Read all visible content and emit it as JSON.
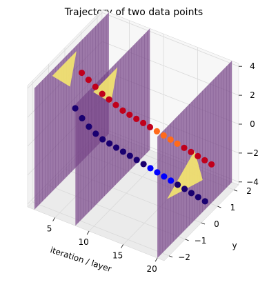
{
  "chart_data": {
    "type": "scatter",
    "projection": "3d",
    "title": "Trajectory of two data points",
    "xlabel": "iteration / layer",
    "ylabel": "y",
    "zlabel": "",
    "xlim": [
      1,
      21
    ],
    "ylim": [
      -2.3,
      2.3
    ],
    "zlim": [
      -4.2,
      4.2
    ],
    "x_ticks": [
      5,
      10,
      15,
      20
    ],
    "y_ticks": [
      -2,
      -1,
      0,
      1,
      2
    ],
    "z_ticks": [
      -4,
      -2,
      0,
      2,
      4
    ],
    "grid": true,
    "planes": [
      {
        "x": 2,
        "color": "#7b4a8c",
        "highlight_color": "#f5e76e",
        "highlight_side": "upper"
      },
      {
        "x": 8,
        "color": "#7b4a8c",
        "highlight_color": "#f5e76e",
        "highlight_side": "upper"
      },
      {
        "x": 20,
        "color": "#7b4a8c",
        "highlight_color": "#f5e76e",
        "highlight_side": "middle"
      }
    ],
    "series": [
      {
        "colors": {
          "start": "#c0001c",
          "end": "#c0001c",
          "mid_highlight": "#ff6a1a"
        },
        "x": [
          3,
          4,
          5,
          6,
          7,
          8,
          9,
          10,
          11,
          12,
          13,
          14,
          15,
          16,
          17,
          18,
          19,
          20,
          21,
          22
        ],
        "y": [
          0.2,
          0.2,
          0.2,
          0.2,
          0.2,
          0.2,
          0.2,
          0.2,
          0.2,
          0.2,
          0.2,
          0.2,
          0.2,
          0.2,
          0.2,
          0.2,
          0.2,
          0.2,
          0.2,
          0.2
        ],
        "z": [
          2.6,
          2.3,
          2.0,
          1.7,
          1.5,
          1.3,
          1.1,
          1.0,
          0.9,
          0.8,
          0.7,
          0.6,
          0.5,
          0.4,
          0.3,
          0.2,
          0.1,
          0.0,
          -0.1,
          -0.2
        ]
      },
      {
        "colors": {
          "start": "#1a0070",
          "end": "#1a0070",
          "mid_highlight": "#0000ff"
        },
        "x": [
          3,
          4,
          5,
          6,
          7,
          8,
          9,
          10,
          11,
          12,
          13,
          14,
          15,
          16,
          17,
          18,
          19,
          20,
          21,
          22
        ],
        "y": [
          -0.2,
          -0.2,
          -0.2,
          -0.2,
          -0.2,
          -0.2,
          -0.2,
          -0.2,
          -0.2,
          -0.2,
          -0.2,
          -0.2,
          -0.2,
          -0.2,
          -0.2,
          -0.2,
          -0.2,
          -0.2,
          -0.2,
          -0.2
        ],
        "z": [
          0.6,
          0.1,
          -0.3,
          -0.6,
          -0.8,
          -0.9,
          -1.0,
          -1.1,
          -1.2,
          -1.3,
          -1.4,
          -1.5,
          -1.6,
          -1.7,
          -1.8,
          -1.9,
          -2.0,
          -2.1,
          -2.2,
          -2.3
        ]
      }
    ]
  }
}
